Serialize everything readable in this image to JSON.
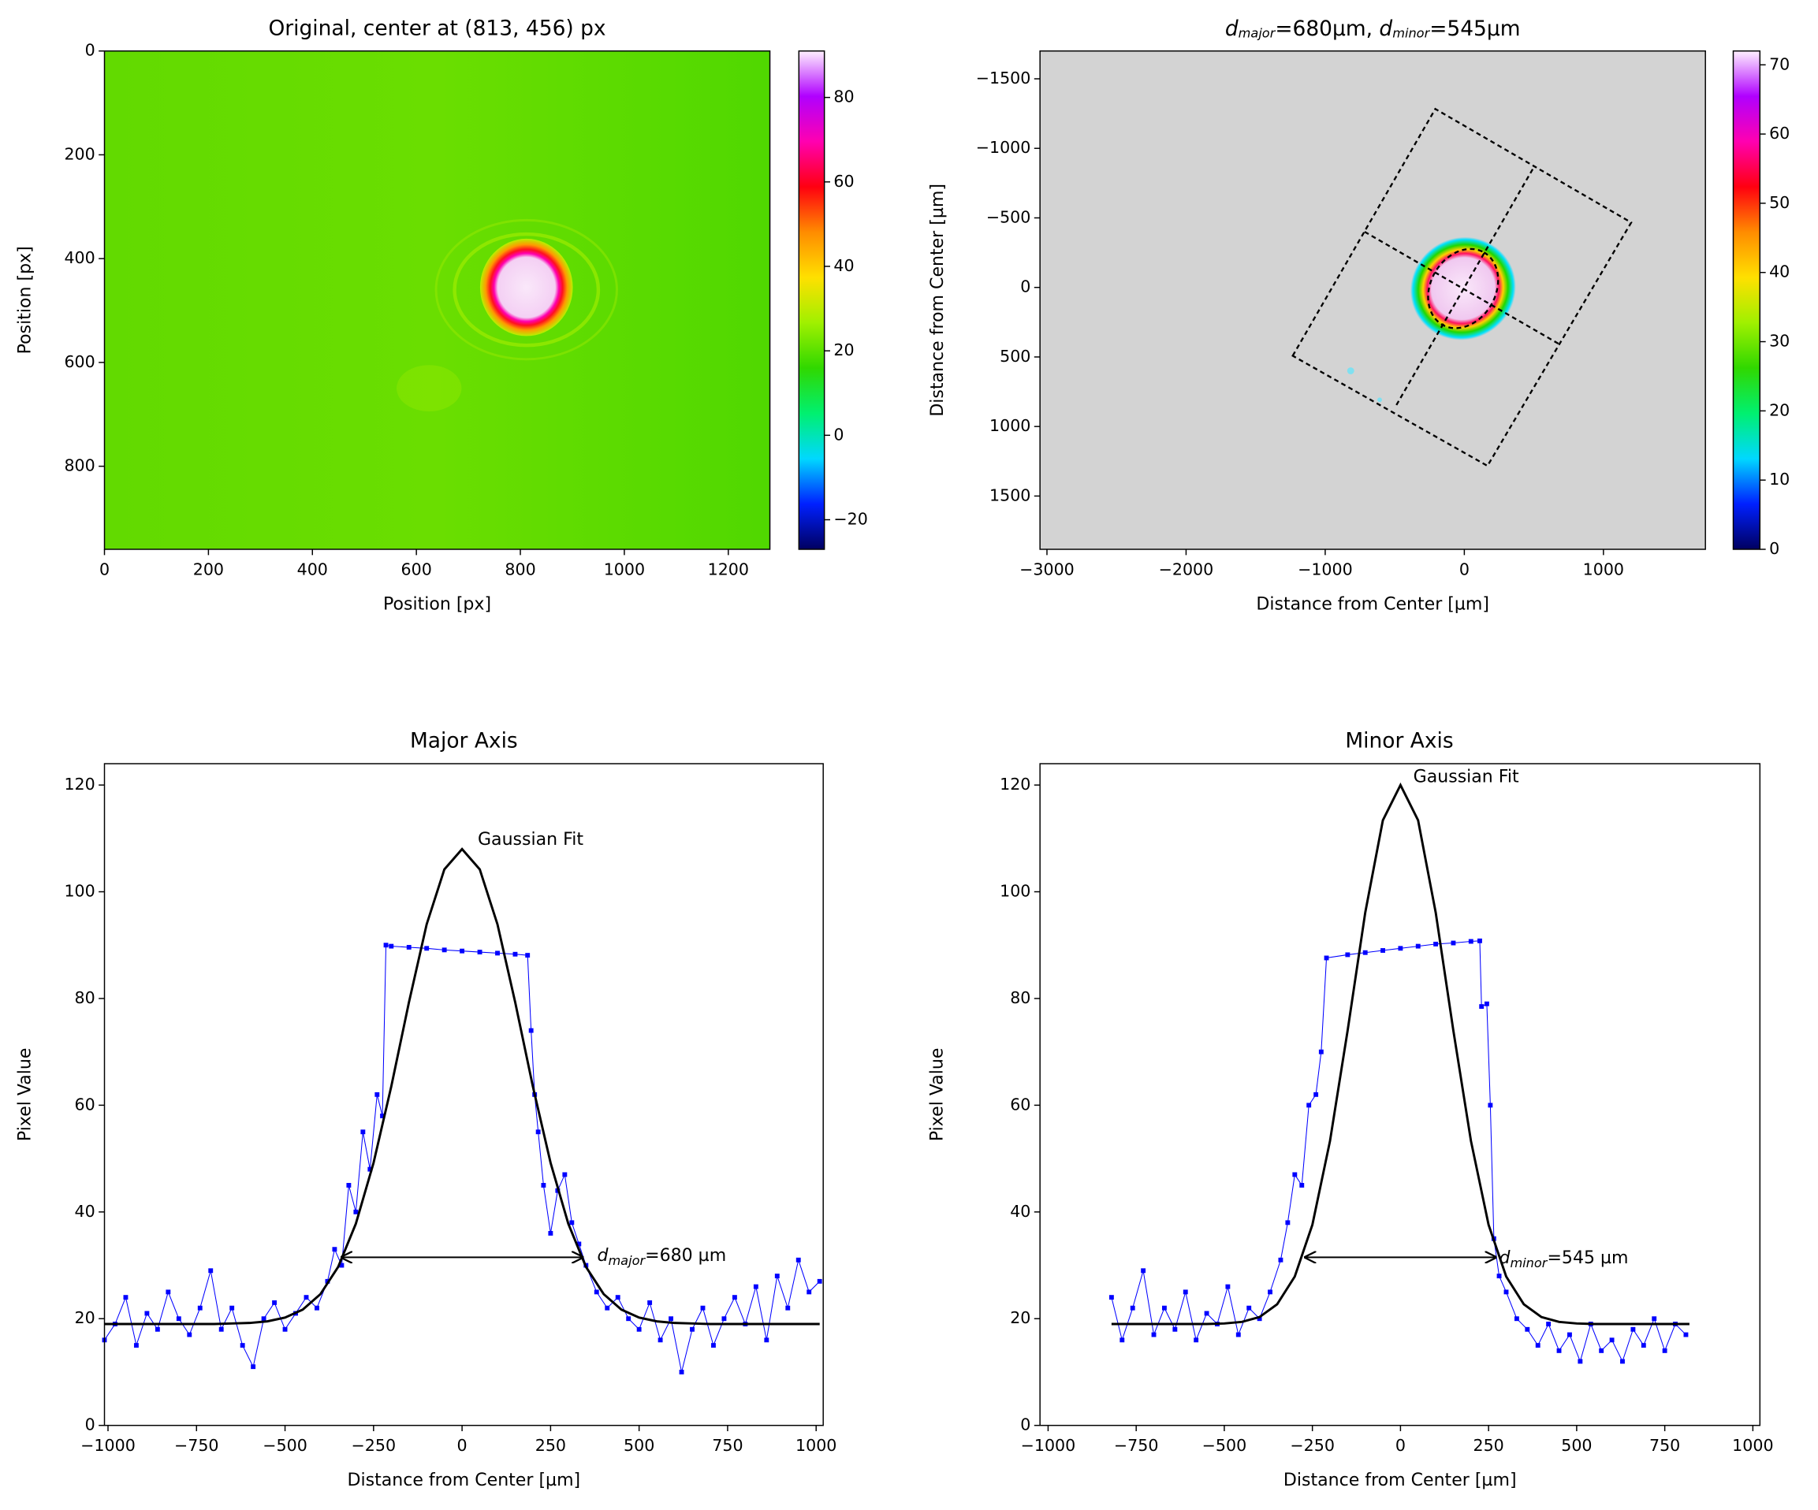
{
  "chart_data": [
    {
      "type": "image",
      "title": "Original, center at (813, 456) px",
      "xlabel": "Position [px]",
      "ylabel": "Position [px]",
      "xlim": [
        0,
        1280
      ],
      "ylim": [
        960,
        0
      ],
      "xticks": [
        0,
        200,
        400,
        600,
        800,
        1000,
        1200
      ],
      "yticks": [
        0,
        200,
        400,
        600,
        800
      ],
      "colorbar": {
        "lim": [
          -27,
          91
        ],
        "ticks": [
          {
            "value": -20,
            "label": "−20"
          },
          0,
          20,
          40,
          60,
          80
        ],
        "colormap": [
          "#000060",
          "#0020ff",
          "#00d8ff",
          "#00f070",
          "#30d800",
          "#a0f000",
          "#ffe000",
          "#ff8c00",
          "#ff0010",
          "#ff00b0",
          "#b000ff",
          "#fff0ff"
        ]
      }
    },
    {
      "type": "image",
      "title": [
        "d",
        "major",
        "=680µm, ",
        "d",
        "minor",
        "=545µm"
      ],
      "xlabel": "Distance from Center [µm]",
      "ylabel": "Distance from Center [µm]",
      "xlim": [
        -3050,
        1733
      ],
      "ylim": [
        1883,
        -1700
      ],
      "xticks": [
        {
          "value": -3000,
          "label": "−3000"
        },
        {
          "value": -2000,
          "label": "−2000"
        },
        {
          "value": -1000,
          "label": "−1000"
        },
        0,
        1000
      ],
      "yticks": [
        {
          "value": -1500,
          "label": "−1500"
        },
        {
          "value": -1000,
          "label": "−1000"
        },
        {
          "value": -500,
          "label": "−500"
        },
        0,
        500,
        1000,
        1500
      ],
      "colorbar": {
        "lim": [
          0,
          72
        ],
        "ticks": [
          0,
          10,
          20,
          30,
          40,
          50,
          60,
          70
        ],
        "colormap": [
          "#000060",
          "#0020ff",
          "#00d8ff",
          "#00f070",
          "#30d800",
          "#a0f000",
          "#ffe000",
          "#ff8c00",
          "#ff0010",
          "#ff00b0",
          "#b000ff",
          "#fff0ff"
        ]
      }
    },
    {
      "type": "line",
      "title": "Major Axis",
      "xlabel": "Distance from Center [µm]",
      "ylabel": "Pixel Value",
      "xlim": [
        -1010,
        1020
      ],
      "ylim": [
        0,
        124
      ],
      "xticks": [
        {
          "value": -1000,
          "label": "−1000"
        },
        {
          "value": -750,
          "label": "−750"
        },
        {
          "value": -500,
          "label": "−500"
        },
        {
          "value": -250,
          "label": "−250"
        },
        0,
        250,
        500,
        750,
        1000
      ],
      "yticks": [
        0,
        20,
        40,
        60,
        80,
        100,
        120
      ],
      "fit_label": "Gaussian Fit",
      "d_label": [
        "d",
        "major",
        "=680 µm"
      ],
      "arrow": {
        "x": [
          -340,
          340
        ],
        "y": 31.5
      },
      "series": [
        {
          "color": "#0000ff",
          "marker": "square",
          "x": [
            -1010,
            -980,
            -950,
            -920,
            -890,
            -860,
            -830,
            -800,
            -770,
            -740,
            -710,
            -680,
            -650,
            -620,
            -590,
            -560,
            -530,
            -500,
            -470,
            -440,
            -410,
            -380,
            -360,
            -340,
            -320,
            -300,
            -280,
            -260,
            -240,
            -225,
            -215,
            -200,
            -150,
            -100,
            -50,
            0,
            50,
            100,
            150,
            185,
            195,
            205,
            215,
            230,
            250,
            270,
            290,
            310,
            330,
            350,
            380,
            410,
            440,
            470,
            500,
            530,
            560,
            590,
            620,
            650,
            680,
            710,
            740,
            770,
            800,
            830,
            860,
            890,
            920,
            950,
            980,
            1010
          ],
          "values": [
            16,
            19,
            24,
            15,
            21,
            18,
            25,
            20,
            17,
            22,
            29,
            18,
            22,
            15,
            11,
            20,
            23,
            18,
            21,
            24,
            22,
            27,
            33,
            30,
            45,
            40,
            55,
            48,
            62,
            58,
            90,
            89.8,
            89.6,
            89.4,
            89.1,
            88.9,
            88.7,
            88.5,
            88.3,
            88.1,
            74,
            62,
            55,
            45,
            36,
            44,
            47,
            38,
            34,
            30,
            25,
            22,
            24,
            20,
            18,
            23,
            16,
            20,
            10,
            18,
            22,
            15,
            20,
            24,
            19,
            26,
            16,
            28,
            22,
            31,
            25,
            27
          ]
        },
        {
          "color": "#000000",
          "x": [
            -1010,
            -800,
            -700,
            -650,
            -600,
            -550,
            -500,
            -450,
            -400,
            -350,
            -300,
            -250,
            -200,
            -150,
            -100,
            -50,
            0,
            50,
            100,
            150,
            200,
            250,
            300,
            350,
            400,
            450,
            500,
            550,
            600,
            650,
            700,
            800,
            1010
          ],
          "values": [
            19,
            19,
            19,
            19.1,
            19.2,
            19.5,
            20.2,
            21.7,
            24.6,
            29.7,
            37.8,
            49.2,
            63.5,
            79.3,
            93.9,
            104.2,
            108,
            104.2,
            93.9,
            79.3,
            63.5,
            49.2,
            37.8,
            29.7,
            24.6,
            21.7,
            20.2,
            19.5,
            19.2,
            19.1,
            19,
            19,
            19
          ]
        }
      ]
    },
    {
      "type": "line",
      "title": "Minor Axis",
      "xlabel": "Distance from Center [µm]",
      "ylabel": "Pixel Value",
      "xlim": [
        -1023,
        1020
      ],
      "ylim": [
        0,
        124
      ],
      "xticks": [
        {
          "value": -1000,
          "label": "−1000"
        },
        {
          "value": -750,
          "label": "−750"
        },
        {
          "value": -500,
          "label": "−500"
        },
        {
          "value": -250,
          "label": "−250"
        },
        0,
        250,
        500,
        750,
        1000
      ],
      "yticks": [
        0,
        20,
        40,
        60,
        80,
        100,
        120
      ],
      "fit_label": "Gaussian Fit",
      "d_label": [
        "d",
        "minor",
        "=545 µm"
      ],
      "arrow": {
        "x": [
          -270,
          270
        ],
        "y": 31.5
      },
      "series": [
        {
          "color": "#0000ff",
          "marker": "square",
          "x": [
            -820,
            -790,
            -760,
            -730,
            -700,
            -670,
            -640,
            -610,
            -580,
            -550,
            -520,
            -490,
            -460,
            -430,
            -400,
            -370,
            -340,
            -320,
            -300,
            -280,
            -260,
            -240,
            -225,
            -210,
            -150,
            -100,
            -50,
            0,
            50,
            100,
            150,
            200,
            225,
            230,
            245,
            255,
            265,
            280,
            300,
            330,
            360,
            390,
            420,
            450,
            480,
            510,
            540,
            570,
            600,
            630,
            660,
            690,
            720,
            750,
            780,
            810
          ],
          "values": [
            24,
            16,
            22,
            29,
            17,
            22,
            18,
            25,
            16,
            21,
            19,
            26,
            17,
            22,
            20,
            25,
            31,
            38,
            47,
            45,
            60,
            62,
            70,
            87.6,
            88.2,
            88.6,
            89,
            89.4,
            89.8,
            90.2,
            90.4,
            90.7,
            90.8,
            78.5,
            79,
            60,
            35,
            28,
            25,
            20,
            18,
            15,
            19,
            14,
            17,
            12,
            19,
            14,
            16,
            12,
            18,
            15,
            20,
            14,
            19,
            17
          ]
        },
        {
          "color": "#000000",
          "x": [
            -820,
            -600,
            -550,
            -500,
            -450,
            -400,
            -350,
            -300,
            -250,
            -200,
            -150,
            -100,
            -50,
            0,
            50,
            100,
            150,
            200,
            250,
            300,
            350,
            400,
            450,
            500,
            550,
            600,
            820
          ],
          "values": [
            19,
            19,
            19,
            19.1,
            19.4,
            20.3,
            22.7,
            27.9,
            37.6,
            53.3,
            74,
            96.1,
            113.4,
            120,
            113.4,
            96.1,
            74,
            53.3,
            37.6,
            27.9,
            22.7,
            20.3,
            19.4,
            19.1,
            19,
            19,
            19
          ]
        }
      ]
    }
  ]
}
